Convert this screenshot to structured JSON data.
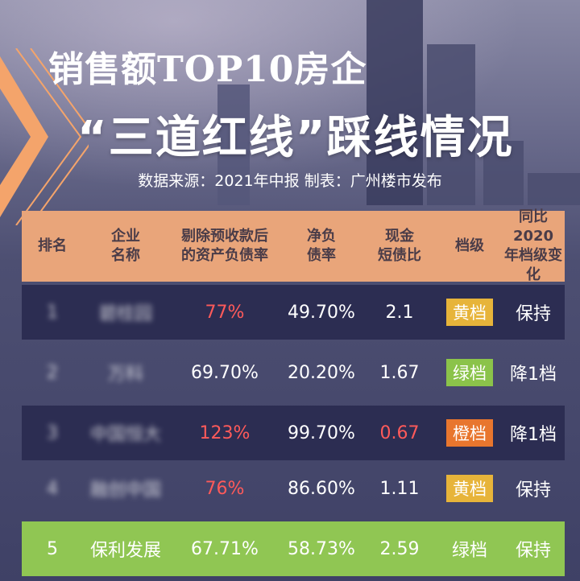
{
  "header": {
    "title_line1": "销售额TOP10房企",
    "title_line2": "“三道红线”踩线情况",
    "source": "数据来源：2021年中报  制表：广州楼市发布"
  },
  "table": {
    "columns": [
      "排名",
      "企业\n名称",
      "剔除预收款后\n的资产负债率",
      "净负\n债率",
      "现金\n短债比",
      "档级",
      "同比2020\n年档级变化"
    ],
    "rows": [
      {
        "rank": "1",
        "company": "碧桂园",
        "asset_liability": "77%",
        "net_debt": "49.70%",
        "cash_ratio": "2.1",
        "tier": "黄档",
        "change": "保持"
      },
      {
        "rank": "2",
        "company": "万科",
        "asset_liability": "69.70%",
        "net_debt": "20.20%",
        "cash_ratio": "1.67",
        "tier": "绿档",
        "change": "降1档"
      },
      {
        "rank": "3",
        "company": "中国恒大",
        "asset_liability": "123%",
        "net_debt": "99.70%",
        "cash_ratio": "0.67",
        "tier": "橙档",
        "change": "降1档"
      },
      {
        "rank": "4",
        "company": "融创中国",
        "asset_liability": "76%",
        "net_debt": "86.60%",
        "cash_ratio": "1.11",
        "tier": "黄档",
        "change": "保持"
      },
      {
        "rank": "5",
        "company": "保利发展",
        "asset_liability": "67.71%",
        "net_debt": "58.73%",
        "cash_ratio": "2.59",
        "tier": "绿档",
        "change": "保持"
      }
    ]
  },
  "colors": {
    "header_bg": "#e9a57a",
    "row_dark": "#2c2d52",
    "row_highlight": "#90c653",
    "red_text": "#ff5a5a",
    "tier_yellow": "#e7b43a",
    "tier_green": "#8bc34a",
    "tier_orange": "#e8762e"
  }
}
